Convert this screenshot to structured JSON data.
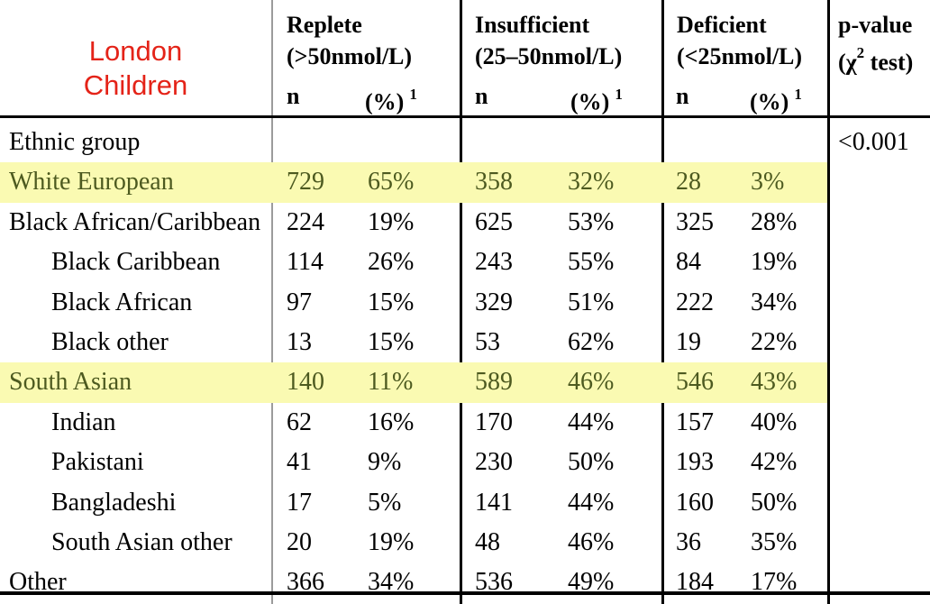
{
  "title": {
    "line1": "London",
    "line2": "Children"
  },
  "header": {
    "groups": [
      {
        "name": "Replete",
        "range": "(>50nmol/L)",
        "n_label": "n",
        "pct_label": "(%)",
        "footnote": "1"
      },
      {
        "name": "Insufficient",
        "range": "(25–50nmol/L)",
        "n_label": "n",
        "pct_label": "(%)",
        "footnote": "1"
      },
      {
        "name": "Deficient",
        "range": "(<25nmol/L)",
        "n_label": "n",
        "pct_label": "(%)",
        "footnote": "1"
      }
    ],
    "pvalue": {
      "title": "p-value",
      "chi_open": "(χ",
      "chi_sup": "2",
      "chi_close": " test)"
    }
  },
  "rows": [
    {
      "label": "Ethnic group",
      "pvalue": "<0.001"
    },
    {
      "label": "White European",
      "replete_n": "729",
      "replete_pct": "65%",
      "insufficient_n": "358",
      "insufficient_pct": "32%",
      "deficient_n": "28",
      "deficient_pct": "3%"
    },
    {
      "label": "Black African/Caribbean",
      "replete_n": "224",
      "replete_pct": "19%",
      "insufficient_n": "625",
      "insufficient_pct": "53%",
      "deficient_n": "325",
      "deficient_pct": "28%"
    },
    {
      "label": "Black Caribbean",
      "replete_n": "114",
      "replete_pct": "26%",
      "insufficient_n": "243",
      "insufficient_pct": "55%",
      "deficient_n": "84",
      "deficient_pct": "19%"
    },
    {
      "label": "Black African",
      "replete_n": "97",
      "replete_pct": "15%",
      "insufficient_n": "329",
      "insufficient_pct": "51%",
      "deficient_n": "222",
      "deficient_pct": "34%"
    },
    {
      "label": "Black other",
      "replete_n": "13",
      "replete_pct": "15%",
      "insufficient_n": "53",
      "insufficient_pct": "62%",
      "deficient_n": "19",
      "deficient_pct": "22%"
    },
    {
      "label": "South Asian",
      "replete_n": "140",
      "replete_pct": "11%",
      "insufficient_n": "589",
      "insufficient_pct": "46%",
      "deficient_n": "546",
      "deficient_pct": "43%"
    },
    {
      "label": "Indian",
      "replete_n": "62",
      "replete_pct": "16%",
      "insufficient_n": "170",
      "insufficient_pct": "44%",
      "deficient_n": "157",
      "deficient_pct": "40%"
    },
    {
      "label": "Pakistani",
      "replete_n": "41",
      "replete_pct": "9%",
      "insufficient_n": "230",
      "insufficient_pct": "50%",
      "deficient_n": "193",
      "deficient_pct": "42%"
    },
    {
      "label": "Bangladeshi",
      "replete_n": "17",
      "replete_pct": "5%",
      "insufficient_n": "141",
      "insufficient_pct": "44%",
      "deficient_n": "160",
      "deficient_pct": "50%"
    },
    {
      "label": "South Asian other",
      "replete_n": "20",
      "replete_pct": "19%",
      "insufficient_n": "48",
      "insufficient_pct": "46%",
      "deficient_n": "36",
      "deficient_pct": "35%"
    },
    {
      "label": "Other",
      "replete_n": "366",
      "replete_pct": "34%",
      "insufficient_n": "536",
      "insufficient_pct": "49%",
      "deficient_n": "184",
      "deficient_pct": "17%"
    }
  ],
  "colors": {
    "title_red": "#e42318",
    "highlight_bg": "#fafab2",
    "highlight_text": "#4d5a20"
  }
}
